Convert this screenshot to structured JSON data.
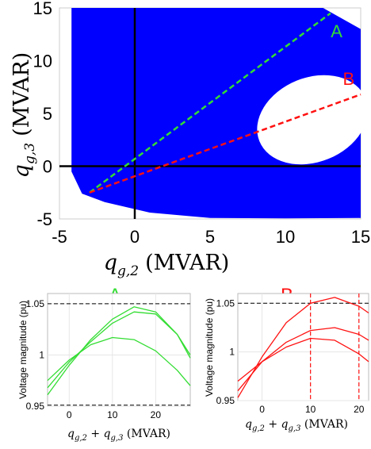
{
  "chart_data": [
    {
      "id": "main",
      "type": "area",
      "xlabel": "q_g,2 (MVAR)",
      "xlabel_main": "q",
      "xlabel_sub": "g,2",
      "xlabel_unit": "(MVAR)",
      "ylabel": "q_g,3 (MVAR)",
      "ylabel_main": "q",
      "ylabel_sub": "g,3",
      "ylabel_unit": "(MVAR)",
      "xlim": [
        -5,
        15
      ],
      "ylim": [
        -5,
        15
      ],
      "xticks": [
        "-5",
        "0",
        "5",
        "10",
        "15"
      ],
      "yticks": [
        "-5",
        "0",
        "5",
        "10",
        "15"
      ],
      "feasible_color": "#0000ff",
      "feasible_region": [
        [
          -4.2,
          15
        ],
        [
          12.5,
          15
        ],
        [
          15,
          13
        ],
        [
          15,
          -4.9
        ],
        [
          10,
          -4.95
        ],
        [
          5,
          -4.9
        ],
        [
          1,
          -4.4
        ],
        [
          -2,
          -3.4
        ],
        [
          -3.5,
          -2.6
        ],
        [
          -4.2,
          -0.5
        ],
        [
          -4.2,
          15
        ]
      ],
      "hole_ellipse": {
        "cx": 11.8,
        "cy": 4.4,
        "rx": 3.8,
        "ry": 4.0,
        "angle": -22
      },
      "axes_lines": {
        "x_zero": 0,
        "y_zero": 0
      },
      "lines": [
        {
          "name": "A",
          "color": "#33dd33",
          "x": [
            -3,
            13
          ],
          "y": [
            -2.5,
            14.5
          ]
        },
        {
          "name": "B",
          "color": "#ff1111",
          "x": [
            -3,
            15
          ],
          "y": [
            -2.5,
            6.8
          ]
        }
      ],
      "line_labels": [
        {
          "text": "A",
          "color": "#33dd33",
          "x": 13.4,
          "y": 12.2
        },
        {
          "text": "B",
          "color": "#ff1111",
          "x": 14.2,
          "y": 7.7
        }
      ]
    },
    {
      "id": "A",
      "type": "line",
      "title": "A",
      "title_color": "#33dd33",
      "xlabel": "q_g,2 + q_g,3 (MVAR)",
      "ylabel": "Voltage magnitude (pu)",
      "xlim": [
        -5,
        28
      ],
      "ylim": [
        0.95,
        1.06
      ],
      "xticks": [
        "0",
        "10",
        "20"
      ],
      "xtick_values": [
        0,
        10,
        20
      ],
      "yticks": [
        "0.95",
        "1",
        "1.05"
      ],
      "ytick_values": [
        0.95,
        1.0,
        1.05
      ],
      "color": "#33dd33",
      "hlines": [
        0.951,
        1.05
      ],
      "series": [
        {
          "x": [
            -5,
            0,
            5,
            10,
            15,
            20,
            25,
            28
          ],
          "y": [
            0.961,
            0.99,
            1.015,
            1.035,
            1.047,
            1.042,
            1.02,
            0.997
          ]
        },
        {
          "x": [
            -5,
            0,
            5,
            10,
            15,
            20,
            25,
            28
          ],
          "y": [
            0.968,
            0.993,
            1.013,
            1.031,
            1.042,
            1.04,
            1.02,
            1.0
          ]
        },
        {
          "x": [
            -5,
            0,
            5,
            10,
            15,
            20,
            25,
            28
          ],
          "y": [
            0.975,
            0.995,
            1.01,
            1.017,
            1.015,
            1.004,
            0.985,
            0.97
          ]
        }
      ]
    },
    {
      "id": "B",
      "type": "line",
      "title": "B",
      "title_color": "#ff1111",
      "xlabel": "q_g,2 + q_g,3 (MVAR)",
      "ylabel": "Voltage magnitude (pu)",
      "xlim": [
        -5,
        22
      ],
      "ylim": [
        0.95,
        1.06
      ],
      "xticks": [
        "0",
        "10",
        "20"
      ],
      "xtick_values": [
        0,
        10,
        20
      ],
      "yticks": [
        "0.95",
        "1",
        "1.05"
      ],
      "ytick_values": [
        0.95,
        1.0,
        1.05
      ],
      "color": "#ff1111",
      "hlines": [
        1.05
      ],
      "vlines": [
        10,
        20
      ],
      "series": [
        {
          "x": [
            -5,
            0,
            5,
            10,
            15,
            20,
            22
          ],
          "y": [
            0.953,
            0.995,
            1.03,
            1.05,
            1.056,
            1.047,
            1.04
          ]
        },
        {
          "x": [
            -5,
            0,
            5,
            10,
            15,
            20,
            22
          ],
          "y": [
            0.96,
            0.99,
            1.01,
            1.022,
            1.025,
            1.018,
            1.012
          ]
        },
        {
          "x": [
            -5,
            0,
            5,
            10,
            15,
            20,
            22
          ],
          "y": [
            0.97,
            0.99,
            1.005,
            1.014,
            1.012,
            0.998,
            0.99
          ]
        }
      ]
    }
  ]
}
